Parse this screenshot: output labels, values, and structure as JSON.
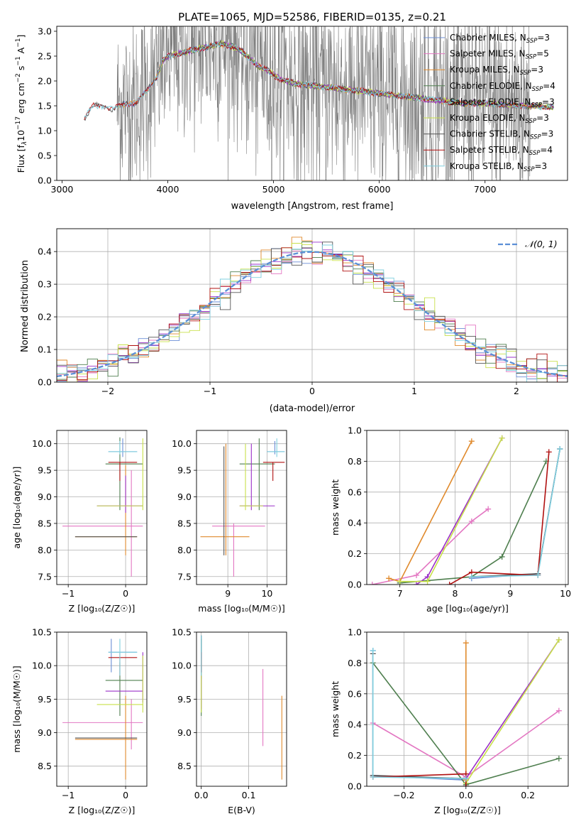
{
  "chart_data": [
    {
      "id": "spectrum",
      "type": "line",
      "title": "PLATE=1065, MJD=52586, FIBERID=0135, z=0.21",
      "xlabel": "wavelength [Angstrom, rest frame]",
      "ylabel": "Flux [fλ10⁻¹⁷ erg cm⁻² s⁻¹ A⁻¹]",
      "xlim": [
        2950,
        7780
      ],
      "ylim": [
        0,
        3.1
      ],
      "xticks": [
        3000,
        4000,
        5000,
        6000,
        7000
      ],
      "yticks": [
        0.0,
        0.5,
        1.0,
        1.5,
        2.0,
        2.5,
        3.0
      ],
      "legend_placement": "right",
      "data_color": "#808080",
      "data_range": [
        3520,
        7430
      ],
      "model_x": [
        3210,
        3300,
        3400,
        3500,
        3600,
        3700,
        3800,
        3900,
        3950,
        4000,
        4100,
        4200,
        4300,
        4400,
        4500,
        4600,
        4700,
        4750,
        4850,
        4950,
        5050,
        5200,
        5400,
        5600,
        5800,
        6000,
        6200,
        6400,
        6600,
        6800,
        7000,
        7200,
        7400,
        7600
      ],
      "model_y": [
        1.3,
        1.55,
        1.55,
        1.45,
        1.55,
        1.55,
        1.8,
        2.1,
        2.4,
        2.5,
        2.55,
        2.6,
        2.65,
        2.7,
        2.75,
        2.7,
        2.6,
        2.5,
        2.3,
        2.2,
        2.05,
        1.95,
        1.9,
        1.85,
        1.8,
        1.75,
        1.7,
        1.65,
        1.6,
        1.55,
        1.55,
        1.52,
        1.5,
        1.48
      ],
      "series": [
        {
          "name": "Chabrier MILES, Nₛₛₚ=3",
          "label_main": "Chabrier MILES, N",
          "label_sub": "SSP",
          "label_n": "=3",
          "color": "#6b8ed6",
          "start": 3520
        },
        {
          "name": "Salpeter MILES, Nₛₛₚ=5",
          "label_main": "Salpeter MILES, N",
          "label_sub": "SSP",
          "label_n": "=5",
          "color": "#e377c2",
          "start": 3520
        },
        {
          "name": "Kroupa MILES, Nₛₛₚ=3",
          "label_main": "Kroupa MILES, N",
          "label_sub": "SSP",
          "label_n": "=3",
          "color": "#e08a2c",
          "start": 3520
        },
        {
          "name": "Chabrier ELODIE, Nₛₛₚ=4",
          "label_main": "Chabrier ELODIE, N",
          "label_sub": "SSP",
          "label_n": "=4",
          "color": "#4f7f4f",
          "start": 3900
        },
        {
          "name": "Salpeter ELODIE, Nₛₛₚ=3",
          "label_main": "Salpeter ELODIE, N",
          "label_sub": "SSP",
          "label_n": "=3",
          "color": "#9b30c8",
          "start": 3900
        },
        {
          "name": "Kroupa ELODIE, Nₛₛₚ=3",
          "label_main": "Kroupa ELODIE, N",
          "label_sub": "SSP",
          "label_n": "=3",
          "color": "#c8e04a",
          "start": 3900
        },
        {
          "name": "Chabrier STELIB, Nₛₛₚ=3",
          "label_main": "Chabrier STELIB, N",
          "label_sub": "SSP",
          "label_n": "=3",
          "color": "#555555",
          "start": 3210
        },
        {
          "name": "Salpeter STELIB, Nₛₛₚ=4",
          "label_main": "Salpeter STELIB, N",
          "label_sub": "SSP",
          "label_n": "=4",
          "color": "#b01010",
          "start": 3210
        },
        {
          "name": "Kroupa STELIB, Nₛₛₚ=3",
          "label_main": "Kroupa STELIB, N",
          "label_sub": "SSP",
          "label_n": "=3",
          "color": "#7fcfdf",
          "start": 3210
        }
      ]
    },
    {
      "id": "residuals",
      "type": "histogram",
      "xlabel": "(data-model)/error",
      "ylabel": "Normed distribution",
      "xlim": [
        -2.5,
        2.5
      ],
      "ylim": [
        0,
        0.47
      ],
      "xticks": [
        -2,
        -1,
        0,
        1,
        2
      ],
      "yticks": [
        0.0,
        0.1,
        0.2,
        0.3,
        0.4
      ],
      "grid": true,
      "legend": "𝒩(0, 1)",
      "legend_placement": "top-right",
      "normal_color": "#5b8fd6",
      "bin_width": 0.1,
      "series_colors": [
        "#6b8ed6",
        "#e377c2",
        "#e08a2c",
        "#4f7f4f",
        "#9b30c8",
        "#c8e04a",
        "#555555",
        "#b01010",
        "#7fcfdf"
      ]
    },
    {
      "id": "z-age",
      "type": "errorbar",
      "xlabel": "Z [log₁₀(Z/Z☉)]",
      "ylabel": "age  [log₁₀(age/yr)]",
      "xlim": [
        -1.2,
        0.37
      ],
      "ylim": [
        7.35,
        10.25
      ],
      "xticks": [
        -1,
        0
      ],
      "yticks": [
        7.5,
        8.0,
        8.5,
        9.0,
        9.5,
        10.0
      ],
      "grid": true,
      "points": [
        {
          "x": -0.05,
          "y": 9.85,
          "xlo": -0.3,
          "xhi": 0.2,
          "ylo": 9.75,
          "yhi": 10.1,
          "color": "#6b8ed6"
        },
        {
          "x": 0.1,
          "y": 8.45,
          "xlo": -1.1,
          "xhi": 0.3,
          "ylo": 7.5,
          "yhi": 9.5,
          "color": "#e377c2"
        },
        {
          "x": 0.0,
          "y": 8.25,
          "xlo": -0.88,
          "xhi": 0.2,
          "ylo": 7.9,
          "yhi": 9.6,
          "color": "#e08a2c"
        },
        {
          "x": -0.1,
          "y": 9.62,
          "xlo": -0.35,
          "xhi": 0.3,
          "ylo": 8.75,
          "yhi": 10.12,
          "color": "#4f7f4f"
        },
        {
          "x": 0.0,
          "y": 8.83,
          "xlo": -0.5,
          "xhi": 0.3,
          "ylo": 8.7,
          "yhi": 9.4,
          "color": "#9b30c8"
        },
        {
          "x": 0.3,
          "y": 8.83,
          "xlo": -0.5,
          "xhi": 0.3,
          "ylo": 8.75,
          "yhi": 10.1,
          "color": "#c8e04a"
        },
        {
          "x": -0.85,
          "y": 8.25,
          "xlo": -0.88,
          "xhi": 0.2,
          "ylo": 8.25,
          "yhi": 8.25,
          "color": "#555555"
        },
        {
          "x": -0.1,
          "y": 9.65,
          "xlo": -0.3,
          "xhi": 0.2,
          "ylo": 9.3,
          "yhi": 9.65,
          "color": "#b01010"
        },
        {
          "x": -0.1,
          "y": 9.85,
          "xlo": -0.3,
          "xhi": 0.2,
          "ylo": 9.8,
          "yhi": 10.05,
          "color": "#7fcfdf"
        }
      ]
    },
    {
      "id": "mass-age",
      "type": "errorbar",
      "xlabel": "mass [log₁₀(M/M☉)]",
      "xlim": [
        8.2,
        10.5
      ],
      "ylim": [
        7.35,
        10.25
      ],
      "xticks": [
        9,
        10
      ],
      "yticks": [
        7.5,
        8.0,
        8.5,
        9.0,
        9.5,
        10.0
      ],
      "grid": true,
      "points": [
        {
          "x": 10.2,
          "y": 9.85,
          "xlo": 10.0,
          "xhi": 10.45,
          "ylo": 9.8,
          "yhi": 10.05,
          "color": "#6b8ed6"
        },
        {
          "x": 9.15,
          "y": 8.45,
          "xlo": 8.6,
          "xhi": 9.95,
          "ylo": 7.5,
          "yhi": 8.5,
          "color": "#e377c2"
        },
        {
          "x": 8.95,
          "y": 8.25,
          "xlo": 8.3,
          "xhi": 9.55,
          "ylo": 7.9,
          "yhi": 10.0,
          "color": "#e08a2c"
        },
        {
          "x": 9.8,
          "y": 9.62,
          "xlo": 9.3,
          "xhi": 10.2,
          "ylo": 8.75,
          "yhi": 10.1,
          "color": "#4f7f4f"
        },
        {
          "x": 9.6,
          "y": 8.83,
          "xlo": 9.3,
          "xhi": 10.2,
          "ylo": 8.75,
          "yhi": 10.0,
          "color": "#9b30c8"
        },
        {
          "x": 9.45,
          "y": 8.83,
          "xlo": 9.3,
          "xhi": 9.9,
          "ylo": 8.75,
          "yhi": 10.0,
          "color": "#c8e04a"
        },
        {
          "x": 8.9,
          "y": 8.25,
          "xlo": 8.9,
          "xhi": 8.9,
          "ylo": 7.9,
          "yhi": 9.95,
          "color": "#555555"
        },
        {
          "x": 10.15,
          "y": 9.65,
          "xlo": 9.9,
          "xhi": 10.45,
          "ylo": 9.3,
          "yhi": 9.65,
          "color": "#b01010"
        },
        {
          "x": 10.25,
          "y": 9.85,
          "xlo": 10.0,
          "xhi": 10.45,
          "ylo": 9.75,
          "yhi": 10.1,
          "color": "#7fcfdf"
        }
      ]
    },
    {
      "id": "age-weight",
      "type": "line",
      "xlabel": "age  [log₁₀(age/yr)]",
      "ylabel": "mass weight",
      "xlim": [
        6.4,
        10.05
      ],
      "ylim": [
        0,
        1.0
      ],
      "xticks": [
        7,
        8,
        9,
        10
      ],
      "yticks": [
        0.0,
        0.2,
        0.4,
        0.6,
        0.8,
        1.0
      ],
      "grid": true,
      "series": [
        {
          "color": "#6b8ed6",
          "x": [
            8.3,
            9.5,
            9.9
          ],
          "y": [
            0.04,
            0.07,
            0.88
          ]
        },
        {
          "color": "#e377c2",
          "x": [
            6.5,
            7.3,
            8.3,
            8.6
          ],
          "y": [
            0.0,
            0.06,
            0.41,
            0.49
          ]
        },
        {
          "color": "#e08a2c",
          "x": [
            6.8,
            7.0,
            8.3
          ],
          "y": [
            0.04,
            0.02,
            0.93
          ]
        },
        {
          "color": "#4f7f4f",
          "x": [
            7.0,
            8.3,
            8.85,
            9.65
          ],
          "y": [
            0.01,
            0.05,
            0.18,
            0.8
          ]
        },
        {
          "color": "#9b30c8",
          "x": [
            7.3,
            7.5,
            8.85
          ],
          "y": [
            0.0,
            0.05,
            0.95
          ]
        },
        {
          "color": "#c8e04a",
          "x": [
            7.0,
            7.5,
            8.85
          ],
          "y": [
            0.02,
            0.02,
            0.95
          ]
        },
        {
          "color": "#555555",
          "x": [
            8.3,
            9.5,
            9.9
          ],
          "y": [
            0.05,
            0.07,
            0.88
          ]
        },
        {
          "color": "#b01010",
          "x": [
            7.9,
            8.3,
            9.5,
            9.7
          ],
          "y": [
            0.0,
            0.08,
            0.06,
            0.86
          ]
        },
        {
          "color": "#7fcfdf",
          "x": [
            8.3,
            9.5,
            9.9
          ],
          "y": [
            0.05,
            0.06,
            0.88
          ]
        }
      ]
    },
    {
      "id": "z-mass",
      "type": "errorbar",
      "xlabel": "Z [log₁₀(Z/Z☉)]",
      "ylabel": "mass [log₁₀(M/M☉)]",
      "xlim": [
        -1.2,
        0.37
      ],
      "ylim": [
        8.2,
        10.5
      ],
      "xticks": [
        -1,
        0
      ],
      "yticks": [
        8.5,
        9.0,
        9.5,
        10.0,
        10.5
      ],
      "grid": true,
      "points": [
        {
          "x": -0.25,
          "y": 10.2,
          "xlo": -0.3,
          "xhi": 0.2,
          "ylo": 9.9,
          "yhi": 10.4,
          "color": "#6b8ed6"
        },
        {
          "x": 0.1,
          "y": 9.15,
          "xlo": -1.1,
          "xhi": 0.3,
          "ylo": 8.75,
          "yhi": 9.5,
          "color": "#e377c2"
        },
        {
          "x": 0.0,
          "y": 8.9,
          "xlo": -0.88,
          "xhi": 0.2,
          "ylo": 8.3,
          "yhi": 9.55,
          "color": "#e08a2c"
        },
        {
          "x": -0.1,
          "y": 9.78,
          "xlo": -0.35,
          "xhi": 0.3,
          "ylo": 9.25,
          "yhi": 10.05,
          "color": "#4f7f4f"
        },
        {
          "x": 0.3,
          "y": 9.62,
          "xlo": -0.35,
          "xhi": 0.3,
          "ylo": 9.45,
          "yhi": 10.2,
          "color": "#9b30c8"
        },
        {
          "x": 0.3,
          "y": 9.42,
          "xlo": -0.5,
          "xhi": 0.3,
          "ylo": 9.3,
          "yhi": 10.15,
          "color": "#c8e04a"
        },
        {
          "x": -0.85,
          "y": 8.92,
          "xlo": -0.88,
          "xhi": 0.2,
          "ylo": 8.92,
          "yhi": 8.92,
          "color": "#555555"
        },
        {
          "x": -0.1,
          "y": 10.12,
          "xlo": -0.3,
          "xhi": 0.2,
          "ylo": 9.85,
          "yhi": 10.2,
          "color": "#b01010"
        },
        {
          "x": -0.1,
          "y": 10.2,
          "xlo": -0.3,
          "xhi": 0.2,
          "ylo": 9.85,
          "yhi": 10.4,
          "color": "#7fcfdf"
        }
      ]
    },
    {
      "id": "ebv-mass",
      "type": "errorbar",
      "xlabel": "E(B-V)",
      "xlim": [
        -0.01,
        0.18
      ],
      "ylim": [
        8.2,
        10.5
      ],
      "xticks": [
        0.0,
        0.1
      ],
      "yticks": [
        8.5,
        9.0,
        9.5,
        10.0,
        10.5
      ],
      "grid": true,
      "points": [
        {
          "x": 0.0,
          "y": 10.2,
          "xlo": 0.0,
          "xhi": 0.0,
          "ylo": 9.8,
          "yhi": 10.45,
          "color": "#6b8ed6"
        },
        {
          "x": 0.13,
          "y": 9.4,
          "xlo": 0.13,
          "xhi": 0.13,
          "ylo": 8.8,
          "yhi": 9.95,
          "color": "#e377c2"
        },
        {
          "x": 0.17,
          "y": 8.9,
          "xlo": 0.17,
          "xhi": 0.17,
          "ylo": 8.3,
          "yhi": 9.55,
          "color": "#e08a2c"
        },
        {
          "x": 0.0,
          "y": 9.8,
          "xlo": 0.0,
          "xhi": 0.0,
          "ylo": 9.25,
          "yhi": 10.4,
          "color": "#4f7f4f"
        },
        {
          "x": 0.0,
          "y": 9.62,
          "xlo": 0.0,
          "xhi": 0.0,
          "ylo": 9.35,
          "yhi": 10.2,
          "color": "#9b30c8"
        },
        {
          "x": 0.0,
          "y": 9.42,
          "xlo": 0.0,
          "xhi": 0.0,
          "ylo": 9.3,
          "yhi": 10.1,
          "color": "#c8e04a"
        },
        {
          "x": 0.0,
          "y": 10.2,
          "xlo": 0.0,
          "xhi": 0.0,
          "ylo": 9.9,
          "yhi": 10.45,
          "color": "#555555"
        },
        {
          "x": 0.0,
          "y": 10.0,
          "xlo": 0.0,
          "xhi": 0.0,
          "ylo": 9.9,
          "yhi": 10.2,
          "color": "#b01010"
        },
        {
          "x": 0.0,
          "y": 10.2,
          "xlo": 0.0,
          "xhi": 0.0,
          "ylo": 9.85,
          "yhi": 10.45,
          "color": "#7fcfdf"
        }
      ]
    },
    {
      "id": "z-weight",
      "type": "line",
      "xlabel": "Z [log₁₀(Z/Z☉)]",
      "ylabel": "mass weight",
      "xlim": [
        -0.32,
        0.33
      ],
      "ylim": [
        0,
        1.0
      ],
      "xticks": [
        -0.2,
        0.0,
        0.2
      ],
      "yticks": [
        0.0,
        0.2,
        0.4,
        0.6,
        0.8,
        1.0
      ],
      "grid": true,
      "series": [
        {
          "color": "#6b8ed6",
          "x": [
            -0.3,
            -0.3,
            0.0,
            0.0
          ],
          "y": [
            0.88,
            0.07,
            0.04,
            0.0
          ]
        },
        {
          "color": "#e377c2",
          "x": [
            -0.3,
            0.0,
            0.3
          ],
          "y": [
            0.41,
            0.06,
            0.49
          ]
        },
        {
          "color": "#e08a2c",
          "x": [
            0.0,
            0.0,
            0.0
          ],
          "y": [
            0.93,
            0.04,
            0.02
          ]
        },
        {
          "color": "#4f7f4f",
          "x": [
            -0.3,
            0.0,
            0.3
          ],
          "y": [
            0.8,
            0.01,
            0.18
          ]
        },
        {
          "color": "#9b30c8",
          "x": [
            0.0,
            0.3
          ],
          "y": [
            0.05,
            0.95
          ]
        },
        {
          "color": "#c8e04a",
          "x": [
            0.0,
            0.3
          ],
          "y": [
            0.02,
            0.95
          ]
        },
        {
          "color": "#555555",
          "x": [
            -0.3,
            -0.3,
            0.0
          ],
          "y": [
            0.86,
            0.07,
            0.05
          ]
        },
        {
          "color": "#b01010",
          "x": [
            -0.3,
            0.0,
            0.0
          ],
          "y": [
            0.06,
            0.08,
            0.0
          ]
        },
        {
          "color": "#7fcfdf",
          "x": [
            -0.3,
            -0.3,
            0.0
          ],
          "y": [
            0.88,
            0.06,
            0.05
          ]
        }
      ]
    }
  ]
}
